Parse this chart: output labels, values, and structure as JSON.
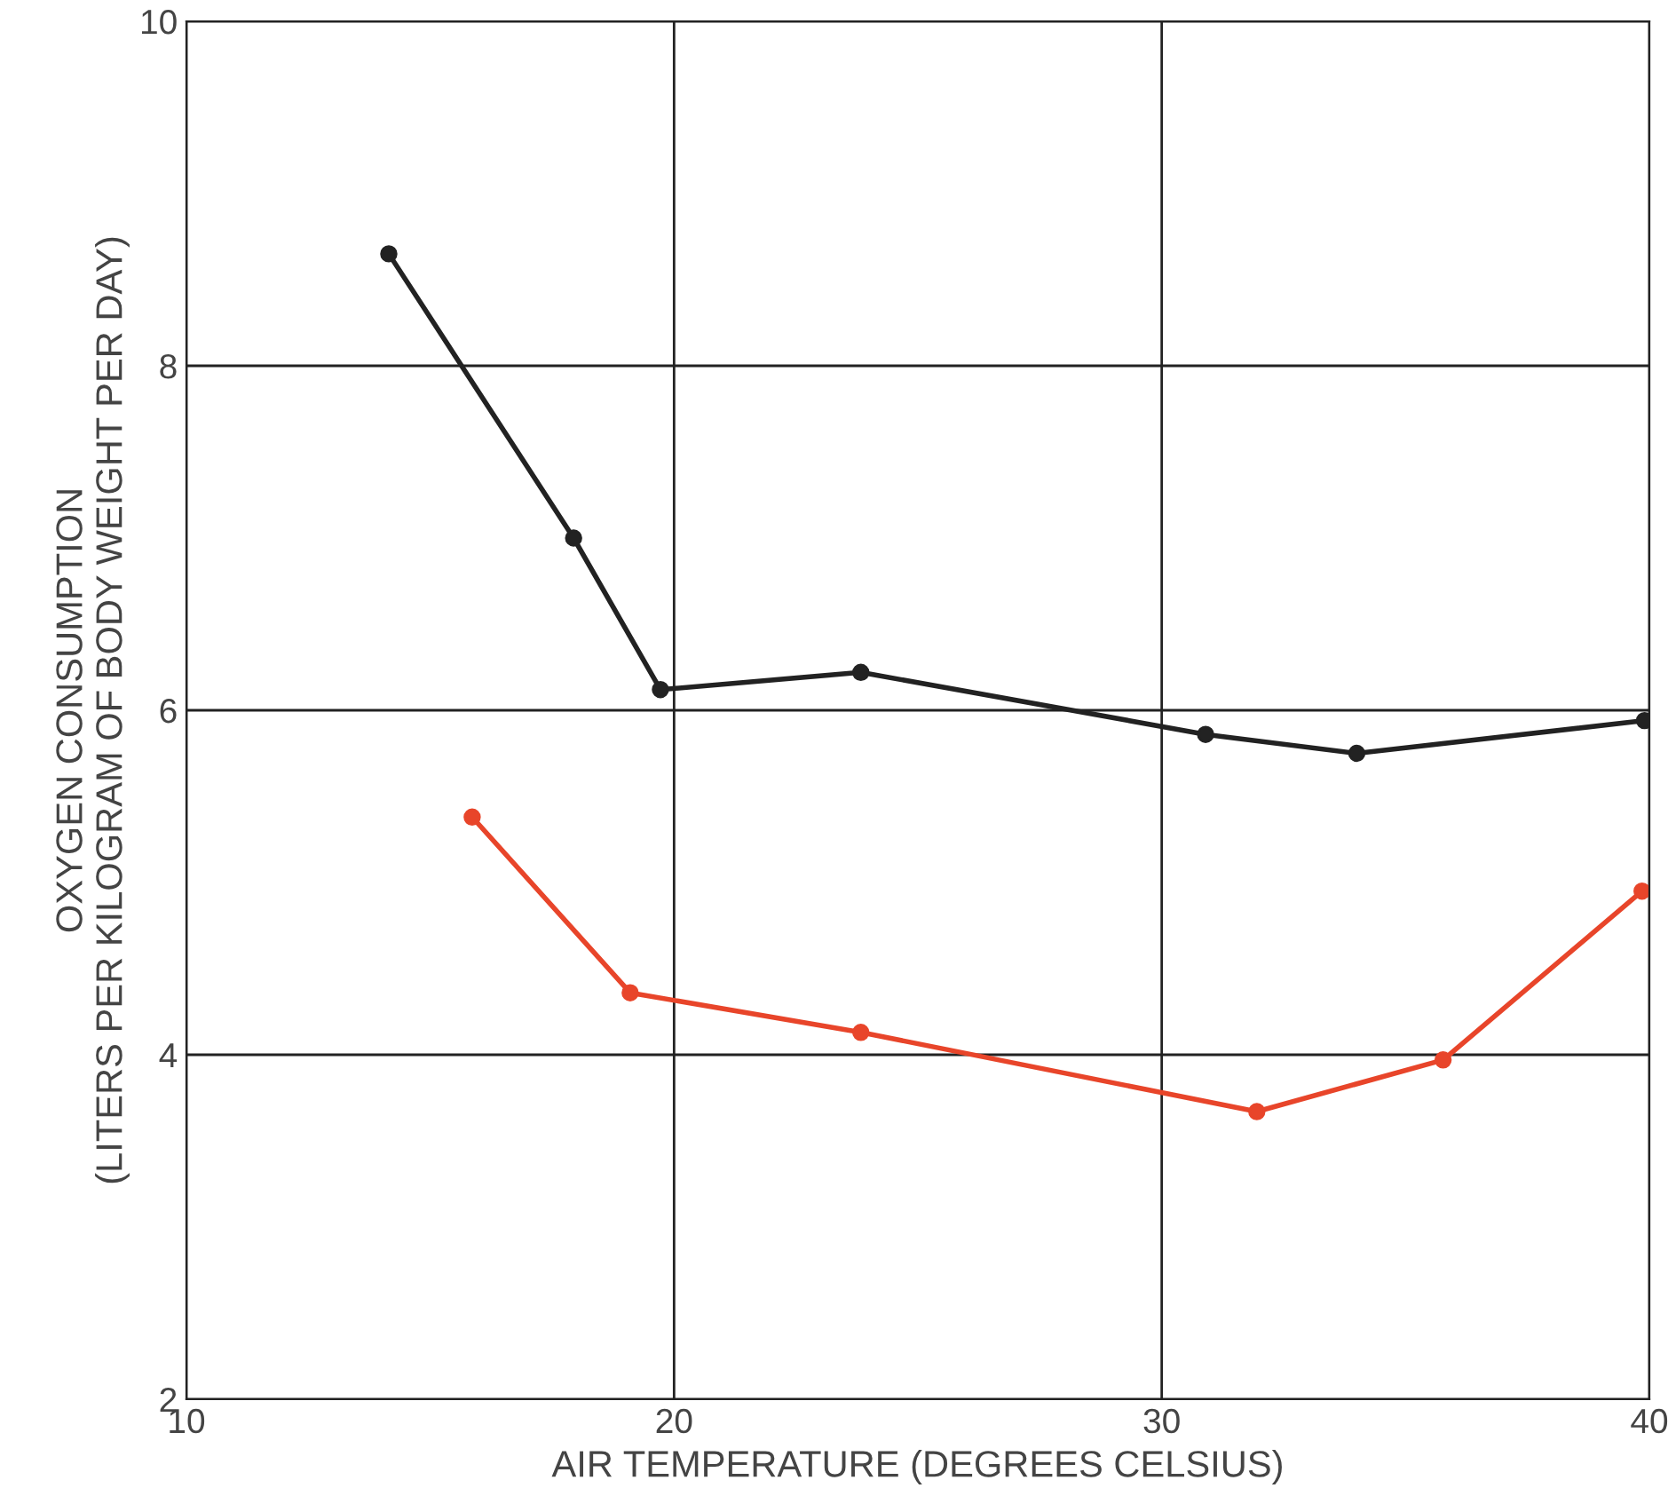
{
  "chart_data": {
    "type": "line",
    "xlabel": "AIR TEMPERATURE (DEGREES CELSIUS)",
    "ylabel": "OXYGEN CONSUMPTION\n(LITERS PER KILOGRAM OF BODY WEIGHT PER DAY)",
    "xlim": [
      10,
      40
    ],
    "xticks": [
      10,
      20,
      30,
      40
    ],
    "ylim": [
      2,
      10
    ],
    "yticks": [
      2,
      4,
      6,
      8,
      10
    ],
    "grid": true,
    "marker": "circle",
    "line_style": "solid",
    "series": [
      {
        "color": "#222222",
        "x": [
          14.15,
          17.94,
          19.72,
          23.83,
          30.9,
          34.0,
          39.9
        ],
        "values": [
          8.65,
          7.0,
          6.12,
          6.22,
          5.86,
          5.75,
          5.94
        ]
      },
      {
        "color": "#e8452a",
        "x": [
          15.86,
          19.1,
          23.83,
          31.95,
          35.77,
          39.85
        ],
        "values": [
          5.38,
          4.36,
          4.13,
          3.67,
          3.97,
          4.95
        ]
      }
    ]
  }
}
